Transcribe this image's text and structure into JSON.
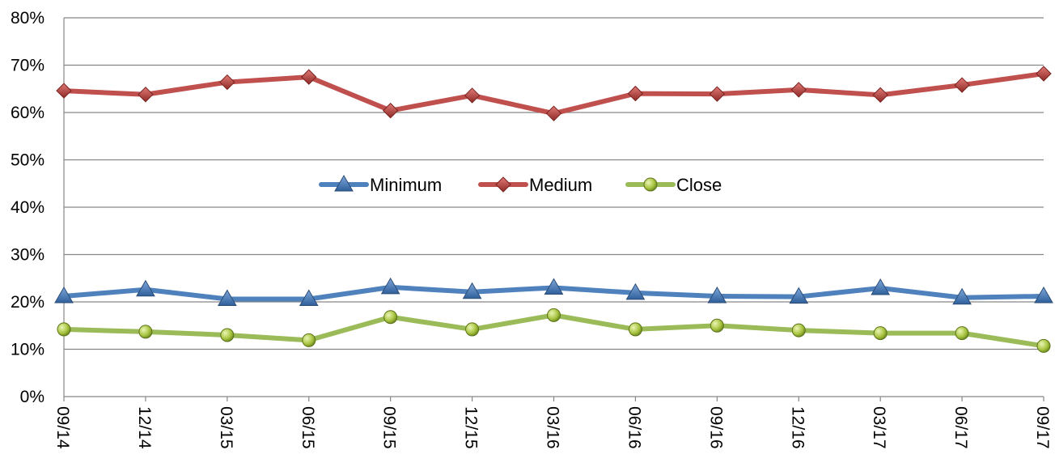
{
  "chart_data": {
    "type": "line",
    "title": "",
    "xlabel": "",
    "ylabel": "",
    "categories": [
      "09/14",
      "12/14",
      "03/15",
      "06/15",
      "09/15",
      "12/15",
      "03/16",
      "06/16",
      "09/16",
      "12/16",
      "03/17",
      "06/17",
      "09/17"
    ],
    "y_ticks": [
      "0%",
      "10%",
      "20%",
      "30%",
      "40%",
      "50%",
      "60%",
      "70%",
      "80%"
    ],
    "ylim": [
      0,
      80
    ],
    "y_unit": "%",
    "grid": "horizontal",
    "legend_placement": "center",
    "series": [
      {
        "name": "Minimum",
        "color": "#4F81BD",
        "marker": "triangle",
        "values": [
          21.2,
          22.6,
          20.6,
          20.6,
          23.1,
          22.1,
          23.0,
          21.9,
          21.2,
          21.1,
          22.9,
          20.9,
          21.2
        ]
      },
      {
        "name": "Medium",
        "color": "#C0504D",
        "marker": "diamond",
        "values": [
          64.6,
          63.8,
          66.4,
          67.5,
          60.4,
          63.6,
          59.8,
          64.0,
          63.9,
          64.8,
          63.7,
          65.8,
          68.2
        ]
      },
      {
        "name": "Close",
        "color": "#9BBB59",
        "marker": "circle",
        "values": [
          14.2,
          13.7,
          13.0,
          11.9,
          16.8,
          14.2,
          17.2,
          14.2,
          15.0,
          14.0,
          13.4,
          13.4,
          10.7
        ]
      }
    ]
  }
}
